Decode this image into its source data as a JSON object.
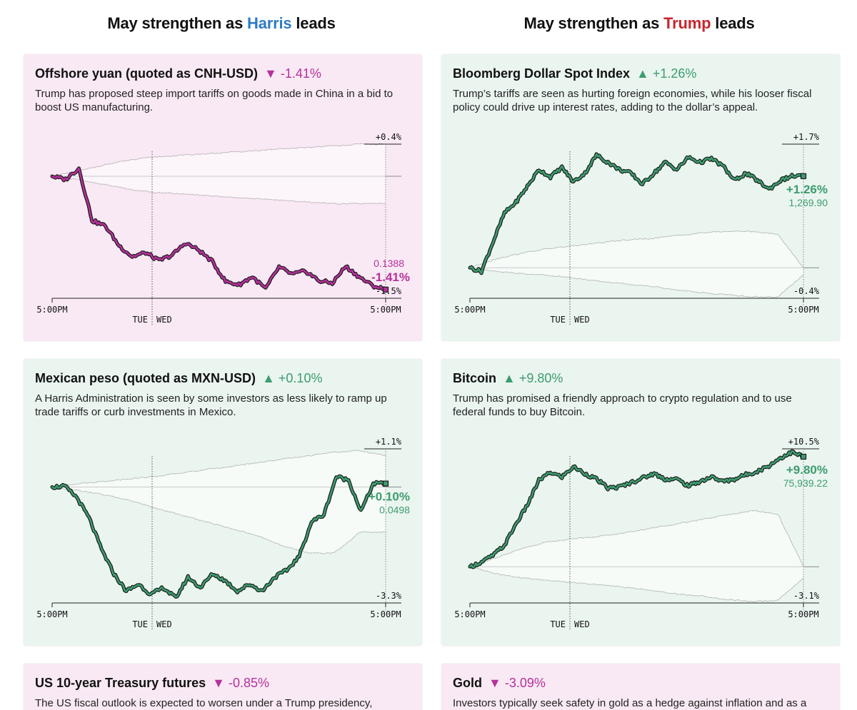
{
  "headers": {
    "left": {
      "prefix": "May strengthen as ",
      "name": "Harris",
      "suffix": " leads",
      "color": "#2f7bc4"
    },
    "right": {
      "prefix": "May strengthen as ",
      "name": "Trump",
      "suffix": " leads",
      "color": "#c8262e"
    }
  },
  "colors": {
    "down": "#b5319b",
    "up": "#3d9c6e",
    "pink_bg": "#f9e9f4",
    "green_bg": "#eaf5f0"
  },
  "cards": [
    {
      "title": "Offshore yuan (quoted as CNH-USD)",
      "direction": "down",
      "arrow": "▼",
      "change": "-1.41%",
      "description": "Trump has proposed steep import tariffs on goods made in China in a bid to boost US manufacturing."
    },
    {
      "title": "Bloomberg Dollar Spot Index",
      "direction": "up",
      "arrow": "▲",
      "change": "+1.26%",
      "description": "Trump’s tariffs are seen as hurting foreign economies, while his looser fiscal policy could drive up interest rates, adding to the dollar’s appeal."
    },
    {
      "title": "Mexican peso (quoted as MXN-USD)",
      "direction": "up",
      "arrow": "▲",
      "change": "+0.10%",
      "description": "A Harris Administration is seen by some investors as less likely to ramp up trade tariffs or curb investments in Mexico."
    },
    {
      "title": "Bitcoin",
      "direction": "up",
      "arrow": "▲",
      "change": "+9.80%",
      "description": "Trump has promised a friendly approach to crypto regulation and to use federal funds to buy Bitcoin."
    },
    {
      "title": "US 10-year Treasury futures",
      "direction": "down",
      "arrow": "▼",
      "change": "-0.85%",
      "description": "The US fiscal outlook is expected to worsen under a Trump presidency,"
    },
    {
      "title": "Gold",
      "direction": "down",
      "arrow": "▼",
      "change": "-3.09%",
      "description": "Investors typically seek safety in gold as a hedge against inflation and as a"
    }
  ],
  "chart_data": [
    {
      "type": "line",
      "asset": "Offshore yuan (quoted as CNH-USD)",
      "xlabel_start": "5:00PM",
      "xlabel_end": "5:00PM",
      "day_labels": [
        "TUE",
        "WED"
      ],
      "range_top_label": "+0.4%",
      "range_bottom_label": "-1.5%",
      "ylim": [
        -1.5,
        0.4
      ],
      "end_pct_label": "-1.41%",
      "end_value_label": "0.1388",
      "value_position": "above",
      "series": [
        {
          "name": "CNH-USD % change",
          "values": [
            0,
            -0.04,
            0.1,
            -0.55,
            -0.62,
            -0.86,
            -1.0,
            -0.95,
            -1.05,
            -0.98,
            -0.83,
            -0.92,
            -1.06,
            -1.31,
            -1.35,
            -1.25,
            -1.4,
            -1.13,
            -1.22,
            -1.18,
            -1.3,
            -1.33,
            -1.12,
            -1.25,
            -1.36,
            -1.41
          ]
        }
      ],
      "range_upper": [
        0,
        0.06,
        0.14,
        0.2,
        0.24,
        0.26,
        0.28,
        0.3,
        0.32,
        0.34,
        0.36,
        0.38,
        0.4,
        0.4
      ],
      "range_lower": [
        0,
        -0.04,
        -0.1,
        -0.16,
        -0.2,
        -0.22,
        -0.24,
        -0.26,
        -0.28,
        -0.3,
        -0.32,
        -0.34,
        -0.34,
        -0.34
      ]
    },
    {
      "type": "line",
      "asset": "Bloomberg Dollar Spot Index",
      "xlabel_start": "5:00PM",
      "xlabel_end": "5:00PM",
      "day_labels": [
        "TUE",
        "WED"
      ],
      "range_top_label": "+1.7%",
      "range_bottom_label": "-0.4%",
      "ylim": [
        -0.4,
        1.7
      ],
      "end_pct_label": "+1.26%",
      "end_value_label": "1,269.90",
      "value_position": "below",
      "series": [
        {
          "name": "Dollar index % change",
          "values": [
            0,
            -0.05,
            0.35,
            0.75,
            0.9,
            1.12,
            1.35,
            1.25,
            1.38,
            1.18,
            1.3,
            1.55,
            1.45,
            1.35,
            1.3,
            1.15,
            1.3,
            1.45,
            1.35,
            1.52,
            1.45,
            1.5,
            1.4,
            1.2,
            1.3,
            1.2,
            1.08,
            1.2,
            1.26,
            1.26
          ]
        }
      ],
      "range_upper": [
        0,
        0.12,
        0.2,
        0.26,
        0.3,
        0.34,
        0.38,
        0.4,
        0.44,
        0.48,
        0.5,
        0.5,
        0.46,
        0.0
      ],
      "range_lower": [
        0,
        -0.05,
        -0.08,
        -0.1,
        -0.14,
        -0.18,
        -0.22,
        -0.25,
        -0.3,
        -0.34,
        -0.37,
        -0.4,
        -0.4,
        -0.1
      ]
    },
    {
      "type": "line",
      "asset": "Mexican peso (quoted as MXN-USD)",
      "xlabel_start": "5:00PM",
      "xlabel_end": "5:00PM",
      "day_labels": [
        "TUE",
        "WED"
      ],
      "range_top_label": "+1.1%",
      "range_bottom_label": "-3.3%",
      "ylim": [
        -3.3,
        1.1
      ],
      "end_pct_label": "+0.10%",
      "end_value_label": "0.0498",
      "value_position": "below",
      "series": [
        {
          "name": "MXN-USD % change",
          "values": [
            0,
            0.02,
            -0.3,
            -0.9,
            -1.8,
            -2.5,
            -3.0,
            -2.8,
            -3.1,
            -2.9,
            -3.2,
            -2.6,
            -2.9,
            -2.5,
            -2.7,
            -3.0,
            -2.8,
            -3.0,
            -2.6,
            -2.4,
            -2.0,
            -1.0,
            -0.8,
            0.3,
            0.2,
            -0.7,
            0.1,
            0.1
          ]
        }
      ],
      "range_upper": [
        0,
        0.1,
        0.16,
        0.24,
        0.3,
        0.4,
        0.5,
        0.6,
        0.7,
        0.8,
        0.9,
        1.0,
        1.05,
        0.9
      ],
      "range_lower": [
        0,
        -0.1,
        -0.22,
        -0.38,
        -0.6,
        -0.8,
        -1.0,
        -1.2,
        -1.4,
        -1.7,
        -1.9,
        -1.9,
        -1.3,
        -1.3
      ]
    },
    {
      "type": "line",
      "asset": "Bitcoin",
      "xlabel_start": "5:00PM",
      "xlabel_end": "5:00PM",
      "day_labels": [
        "TUE",
        "WED"
      ],
      "range_top_label": "+10.5%",
      "range_bottom_label": "-3.1%",
      "ylim": [
        -3.1,
        10.5
      ],
      "end_pct_label": "+9.80%",
      "end_value_label": "75,939.22",
      "value_position": "below",
      "series": [
        {
          "name": "Bitcoin % change",
          "values": [
            0,
            0.4,
            1.0,
            1.9,
            3.8,
            5.5,
            7.7,
            8.4,
            8.0,
            8.9,
            8.3,
            7.8,
            7.0,
            7.1,
            7.5,
            7.9,
            8.3,
            7.8,
            7.8,
            7.2,
            7.6,
            8.0,
            7.6,
            7.8,
            8.2,
            8.5,
            9.0,
            9.7,
            10.2,
            9.8
          ]
        }
      ],
      "range_upper": [
        0,
        0.8,
        1.6,
        2.2,
        2.5,
        2.7,
        3.0,
        3.4,
        3.8,
        4.2,
        4.6,
        5.0,
        4.7,
        0.0
      ],
      "range_lower": [
        0,
        -0.6,
        -1.0,
        -1.2,
        -1.4,
        -1.6,
        -1.8,
        -2.1,
        -2.4,
        -2.6,
        -2.9,
        -3.1,
        -3.0,
        -1.0
      ]
    }
  ]
}
